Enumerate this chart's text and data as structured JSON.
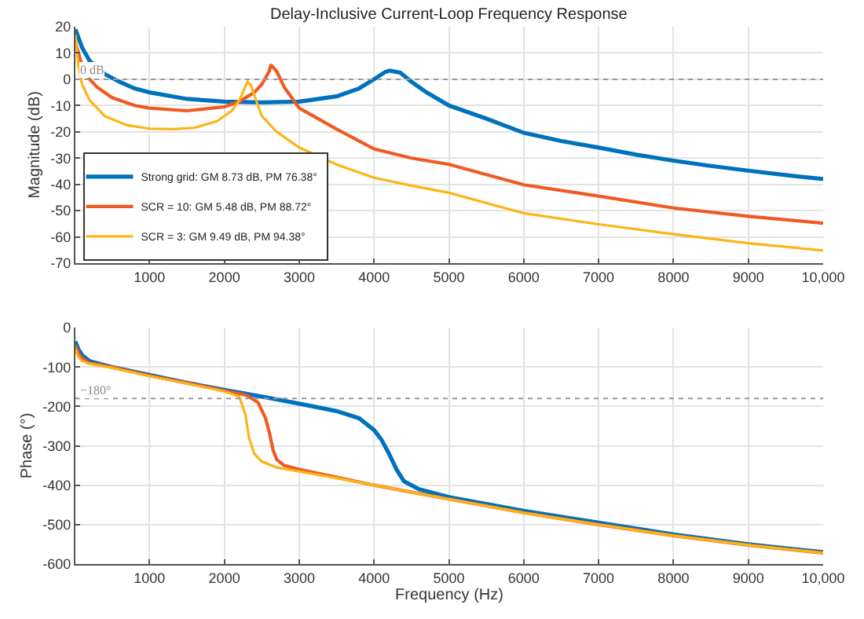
{
  "chart_data": [
    {
      "type": "line",
      "title": "Delay-Inclusive Current-Loop Frequency Response",
      "ylabel": "Magnitude (dB)",
      "xlim": [
        10,
        10000
      ],
      "xticks": [
        1000,
        2000,
        3000,
        4000,
        5000,
        6000,
        7000,
        8000,
        9000,
        {
          "value": 10000,
          "label": "10,000"
        }
      ],
      "ylim": [
        -70,
        20
      ],
      "yticks": [
        -70,
        -60,
        -50,
        -40,
        -30,
        -20,
        -10,
        0,
        10,
        20
      ],
      "grid": true,
      "legend": "bottom left",
      "line_style": "solid",
      "marker": "none",
      "ref_lines": [
        {
          "axis": "y",
          "value": 0,
          "label": "0 dB",
          "color": "#999999",
          "line_style": "dotted"
        }
      ],
      "series": [
        {
          "name": "Strong grid: GM 8.73 dB, PM 76.38°",
          "color": "#0072bd",
          "x": [
            10,
            100,
            200,
            400,
            600,
            800,
            1000,
            1500,
            2000,
            2500,
            3000,
            3500,
            3800,
            4000,
            4150,
            4210,
            4350,
            4500,
            4700,
            5000,
            5500,
            6000,
            6500,
            7000,
            7500,
            8000,
            8500,
            9000,
            9500,
            10000
          ],
          "values": [
            19,
            12,
            7,
            2,
            -1,
            -3.5,
            -5,
            -7.5,
            -8.5,
            -8.8,
            -8.5,
            -6.5,
            -3.5,
            0,
            2.8,
            3.3,
            2.5,
            -1,
            -5,
            -10,
            -15,
            -20.4,
            -23.5,
            -26,
            -28.7,
            -31,
            -33,
            -34.8,
            -36.5,
            -38
          ]
        },
        {
          "name": "SCR = 10: GM 5.48 dB, PM 88.72°",
          "color": "#f05a22",
          "x": [
            10,
            100,
            200,
            300,
            500,
            800,
            1000,
            1500,
            2000,
            2200,
            2400,
            2500,
            2600,
            2620,
            2700,
            2800,
            3000,
            3500,
            4000,
            4500,
            5000,
            6000,
            7000,
            8000,
            9000,
            10000
          ],
          "values": [
            14,
            5,
            0,
            -3,
            -7,
            -10,
            -11,
            -12,
            -10.5,
            -8.5,
            -5,
            -2,
            3,
            5.5,
            3,
            -3,
            -11,
            -19,
            -26.5,
            -30,
            -32.4,
            -40.2,
            -44.5,
            -49,
            -52.2,
            -54.8
          ]
        },
        {
          "name": "SCR = 3: GM 9.49 dB, PM 94.38°",
          "color": "#fdb515",
          "x": [
            10,
            50,
            100,
            200,
            400,
            700,
            1000,
            1300,
            1600,
            1900,
            2100,
            2200,
            2310,
            2350,
            2400,
            2500,
            2700,
            3000,
            3500,
            4000,
            4500,
            5000,
            6000,
            7000,
            8000,
            9000,
            10000
          ],
          "values": [
            17,
            5,
            -2,
            -8,
            -14,
            -17.5,
            -18.8,
            -19,
            -18.5,
            -16,
            -12,
            -8,
            -1,
            -2,
            -6,
            -14,
            -20,
            -26,
            -32.5,
            -37.5,
            -40.5,
            -43.2,
            -51,
            -55.2,
            -59,
            -62.4,
            -65.2
          ]
        }
      ]
    },
    {
      "type": "line",
      "xlabel": "Frequency (Hz)",
      "ylabel": "Phase (°)",
      "xlim": [
        10,
        10000
      ],
      "xticks": [
        1000,
        2000,
        3000,
        4000,
        5000,
        6000,
        7000,
        8000,
        9000,
        {
          "value": 10000,
          "label": "10,000"
        }
      ],
      "ylim": [
        -600,
        0
      ],
      "yticks": [
        -600,
        -500,
        -400,
        -300,
        -200,
        -100,
        0
      ],
      "grid": true,
      "line_style": "solid",
      "marker": "none",
      "ref_lines": [
        {
          "axis": "y",
          "value": -180,
          "label": "−180°",
          "color": "#999999",
          "line_style": "dotted"
        }
      ],
      "series": [
        {
          "color": "#0072bd",
          "x": [
            10,
            50,
            100,
            200,
            500,
            1000,
            1500,
            2000,
            2500,
            3000,
            3500,
            3800,
            4000,
            4100,
            4200,
            4300,
            4400,
            4600,
            5000,
            6000,
            7000,
            8000,
            9000,
            10000
          ],
          "values": [
            -35,
            -55,
            -70,
            -85,
            -100,
            -120,
            -140,
            -158,
            -175,
            -193,
            -212,
            -230,
            -260,
            -285,
            -320,
            -360,
            -390,
            -410,
            -430,
            -465,
            -495,
            -525,
            -550,
            -570
          ]
        },
        {
          "color": "#f05a22",
          "x": [
            10,
            50,
            100,
            200,
            500,
            1000,
            1500,
            2000,
            2300,
            2450,
            2550,
            2600,
            2650,
            2700,
            2800,
            3000,
            3500,
            4000,
            5000,
            6000,
            7000,
            8000,
            9000,
            10000
          ],
          "values": [
            -45,
            -65,
            -78,
            -90,
            -100,
            -122,
            -140,
            -160,
            -172,
            -190,
            -230,
            -265,
            -310,
            -335,
            -350,
            -360,
            -380,
            -400,
            -435,
            -470,
            -500,
            -528,
            -552,
            -572
          ]
        },
        {
          "color": "#fdb515",
          "x": [
            10,
            50,
            100,
            200,
            500,
            1000,
            1500,
            2000,
            2200,
            2280,
            2330,
            2400,
            2500,
            2700,
            3000,
            3500,
            4000,
            5000,
            6000,
            7000,
            8000,
            9000,
            10000
          ],
          "values": [
            -55,
            -75,
            -85,
            -92,
            -102,
            -123,
            -142,
            -162,
            -175,
            -220,
            -280,
            -320,
            -340,
            -355,
            -365,
            -382,
            -400,
            -435,
            -470,
            -500,
            -528,
            -552,
            -572
          ]
        }
      ]
    }
  ]
}
